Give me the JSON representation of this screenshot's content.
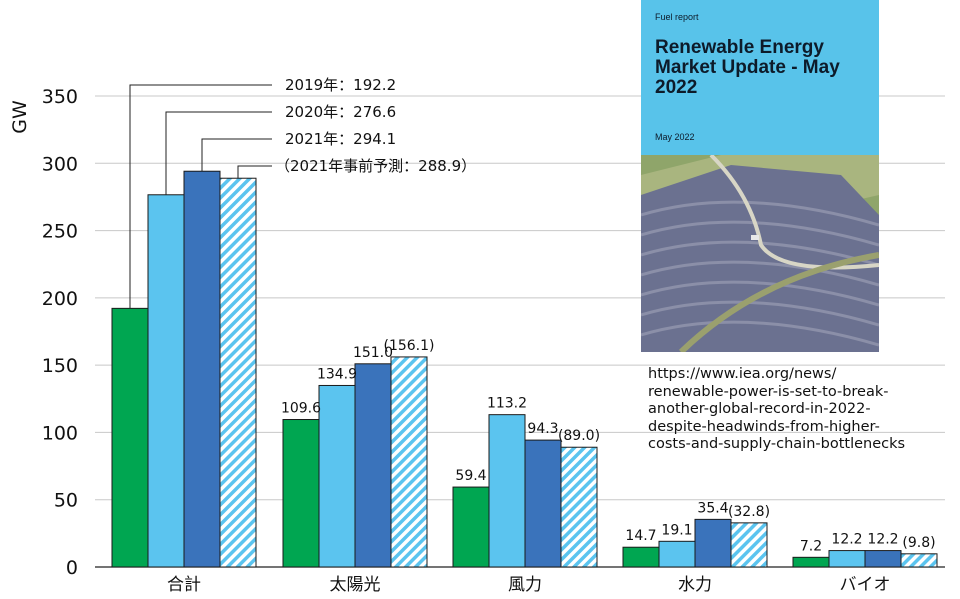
{
  "chart_data": {
    "type": "bar",
    "ylabel": "GW",
    "ylim": [
      0,
      350
    ],
    "yticks": [
      0,
      50,
      100,
      150,
      200,
      250,
      300,
      350
    ],
    "grid": true,
    "categories": [
      "合計",
      "太陽光",
      "風力",
      "水力",
      "バイオ"
    ],
    "series": [
      {
        "name": "2019年",
        "color": "#00a651",
        "values": [
          192.2,
          109.6,
          59.4,
          14.7,
          7.2
        ],
        "labels": [
          "",
          "109.6",
          "59.4",
          "14.7",
          "7.2"
        ]
      },
      {
        "name": "2020年",
        "color": "#5bc4ef",
        "values": [
          276.6,
          134.9,
          113.2,
          19.1,
          12.2
        ],
        "labels": [
          "",
          "134.9",
          "113.2",
          "19.1",
          "12.2"
        ]
      },
      {
        "name": "2021年",
        "color": "#3a73bb",
        "values": [
          294.1,
          151.0,
          94.3,
          35.4,
          12.2
        ],
        "labels": [
          "",
          "151.0",
          "94.3",
          "35.4",
          "12.2"
        ]
      },
      {
        "name": "2021年事前予測",
        "color": "#5bc4ef",
        "pattern": "hatched",
        "values": [
          288.9,
          156.1,
          89.0,
          32.8,
          9.8
        ],
        "labels": [
          "",
          "(156.1)",
          "(89.0)",
          "(32.8)",
          "(9.8)"
        ]
      }
    ],
    "annotations": [
      "2019年：192.2",
      "2020年：276.6",
      "2021年：294.1",
      "（2021年事前予測：288.9）"
    ]
  },
  "report": {
    "publisher": "Fuel report",
    "title": "Renewable Energy Market Update - May 2022",
    "date": "May 2022"
  },
  "source_url": "https://www.iea.org/news/\nrenewable-power-is-set-to-break-\nanother-global-record-in-2022-\ndespite-headwinds-from-higher-\ncosts-and-supply-chain-bottlenecks"
}
